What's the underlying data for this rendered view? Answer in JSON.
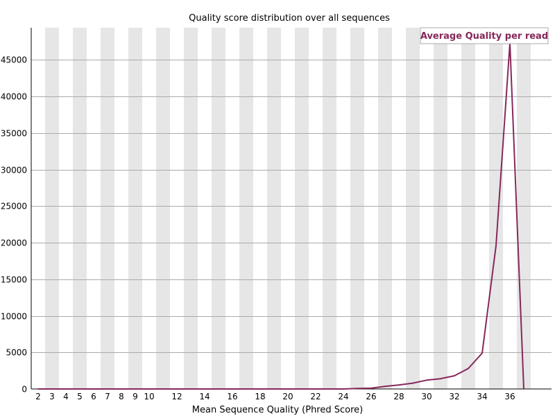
{
  "chart_data": {
    "type": "line",
    "title": "Quality score distribution over all sequences",
    "xlabel": "Mean Sequence Quality (Phred Score)",
    "ylabel": "",
    "x": [
      2,
      3,
      4,
      5,
      6,
      7,
      8,
      9,
      10,
      11,
      12,
      13,
      14,
      15,
      16,
      17,
      18,
      19,
      20,
      21,
      22,
      23,
      24,
      25,
      26,
      27,
      28,
      29,
      30,
      31,
      32,
      33,
      34,
      35,
      36,
      37
    ],
    "x_tick_labels": [
      "2",
      "3",
      "4",
      "5",
      "6",
      "7",
      "8",
      "9",
      "10",
      "12",
      "14",
      "16",
      "18",
      "20",
      "22",
      "24",
      "26",
      "28",
      "30",
      "32",
      "34",
      "36"
    ],
    "series": [
      {
        "name": "Average Quality per read",
        "color": "#86285a",
        "values": [
          0,
          0,
          0,
          0,
          0,
          0,
          0,
          0,
          0,
          0,
          0,
          0,
          0,
          0,
          0,
          0,
          0,
          0,
          0,
          0,
          0,
          0,
          0,
          80,
          100,
          350,
          550,
          800,
          1200,
          1400,
          1800,
          2800,
          4900,
          19600,
          47300,
          0
        ]
      }
    ],
    "ylim": [
      0,
      49400
    ],
    "y_ticks": [
      0,
      5000,
      10000,
      15000,
      20000,
      25000,
      30000,
      35000,
      40000,
      45000
    ],
    "grid": true,
    "legend": "top-right",
    "colors": {
      "band": "#e6e6e6",
      "gridline": "#aaaaaa",
      "axis": "#000000",
      "line": "#86285a"
    }
  }
}
